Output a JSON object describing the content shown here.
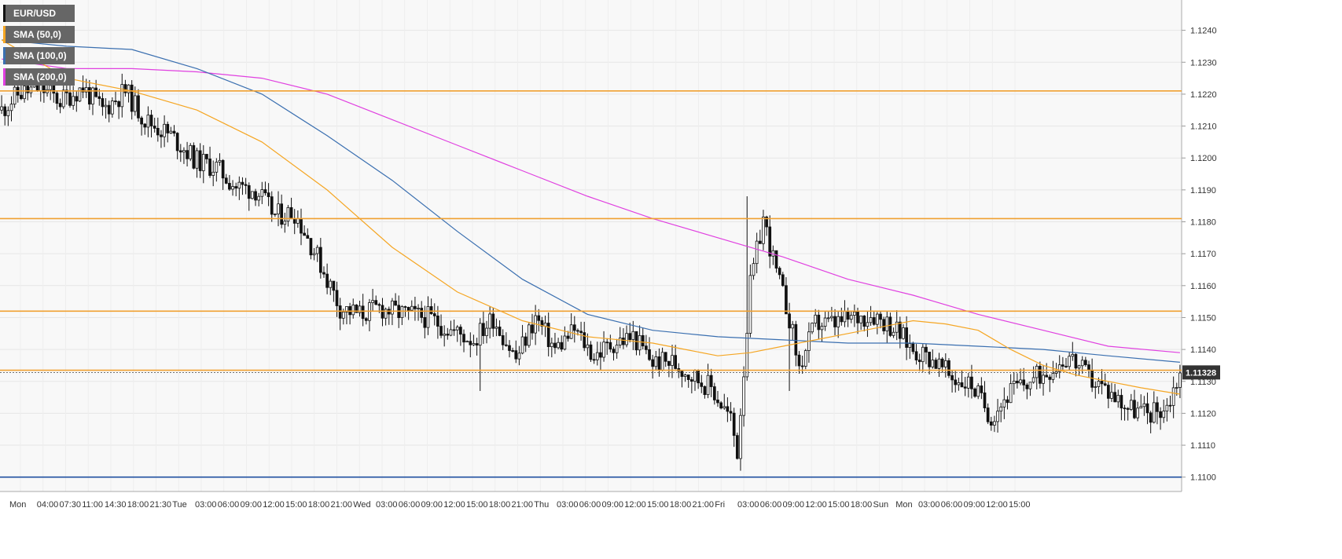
{
  "chart_data": {
    "type": "candlestick",
    "symbol": "EUR/USD",
    "indicators": [
      {
        "label": "SMA (50,0)",
        "color": "#f5a623"
      },
      {
        "label": "SMA (100,0)",
        "color": "#3a6fb0"
      },
      {
        "label": "SMA (200,0)",
        "color": "#e040e0"
      }
    ],
    "y_ticks": [
      "1.1240",
      "1.1230",
      "1.1220",
      "1.1210",
      "1.1200",
      "1.1190",
      "1.1180",
      "1.1170",
      "1.1160",
      "1.1150",
      "1.1140",
      "1.1130",
      "1.1120",
      "1.1110",
      "1.1100"
    ],
    "ylim": [
      1.10955,
      1.12495
    ],
    "x_ticks": [
      "Mon",
      "04:00",
      "07:30",
      "11:00",
      "14:30",
      "18:00",
      "21:30",
      "Tue",
      "03:00",
      "06:00",
      "09:00",
      "12:00",
      "15:00",
      "18:00",
      "21:00",
      "Wed",
      "03:00",
      "06:00",
      "09:00",
      "12:00",
      "15:00",
      "18:00",
      "21:00",
      "Thu",
      "03:00",
      "06:00",
      "09:00",
      "12:00",
      "15:00",
      "18:00",
      "21:00",
      "Fri",
      "03:00",
      "06:00",
      "09:00",
      "12:00",
      "15:00",
      "18:00",
      "Sun",
      "Mon",
      "03:00",
      "06:00",
      "09:00",
      "12:00",
      "15:00"
    ],
    "current_price": "1.11328",
    "current_price_value": 1.11328,
    "horizontal_levels": [
      {
        "value": 1.1221,
        "color": "#f0a030"
      },
      {
        "value": 1.1181,
        "color": "#f0a030"
      },
      {
        "value": 1.1152,
        "color": "#f0a030"
      },
      {
        "value": 1.11335,
        "color": "#f0a030"
      },
      {
        "value": 1.11,
        "color": "#1f4fa0"
      }
    ],
    "close_path": [
      [
        0,
        1.1215
      ],
      [
        5,
        1.122
      ],
      [
        12,
        1.1222
      ],
      [
        18,
        1.1218
      ],
      [
        25,
        1.1222
      ],
      [
        31,
        1.1215
      ],
      [
        38,
        1.1221
      ],
      [
        44,
        1.1212
      ],
      [
        52,
        1.1207
      ],
      [
        60,
        1.1199
      ],
      [
        66,
        1.1197
      ],
      [
        72,
        1.1191
      ],
      [
        78,
        1.119
      ],
      [
        84,
        1.1182
      ],
      [
        90,
        1.1183
      ],
      [
        97,
        1.1169
      ],
      [
        104,
        1.1153
      ],
      [
        110,
        1.1151
      ],
      [
        116,
        1.1153
      ],
      [
        124,
        1.1151
      ],
      [
        131,
        1.115
      ],
      [
        138,
        1.1146
      ],
      [
        145,
        1.1143
      ],
      [
        151,
        1.115
      ],
      [
        158,
        1.1137
      ],
      [
        164,
        1.115
      ],
      [
        170,
        1.114
      ],
      [
        176,
        1.1146
      ],
      [
        182,
        1.1138
      ],
      [
        188,
        1.1142
      ],
      [
        194,
        1.1144
      ],
      [
        200,
        1.1136
      ],
      [
        206,
        1.1136
      ],
      [
        212,
        1.1132
      ],
      [
        218,
        1.1128
      ],
      [
        224,
        1.1118
      ],
      [
        226,
        1.1108
      ],
      [
        230,
        1.116
      ],
      [
        234,
        1.1181
      ],
      [
        238,
        1.1164
      ],
      [
        242,
        1.115
      ],
      [
        245,
        1.1134
      ],
      [
        250,
        1.1148
      ],
      [
        256,
        1.1148
      ],
      [
        262,
        1.115
      ],
      [
        268,
        1.1151
      ],
      [
        274,
        1.1147
      ],
      [
        280,
        1.114
      ],
      [
        286,
        1.1137
      ],
      [
        292,
        1.1131
      ],
      [
        298,
        1.1129
      ],
      [
        304,
        1.1119
      ],
      [
        310,
        1.1127
      ],
      [
        316,
        1.113
      ],
      [
        322,
        1.1134
      ],
      [
        328,
        1.1138
      ],
      [
        334,
        1.1131
      ],
      [
        340,
        1.1127
      ],
      [
        346,
        1.1122
      ],
      [
        352,
        1.112
      ],
      [
        358,
        1.1122
      ],
      [
        362,
        1.1133
      ]
    ],
    "sma50": [
      [
        0,
        1.1237
      ],
      [
        20,
        1.1225
      ],
      [
        40,
        1.1221
      ],
      [
        60,
        1.1215
      ],
      [
        80,
        1.1205
      ],
      [
        100,
        1.119
      ],
      [
        120,
        1.1172
      ],
      [
        140,
        1.1158
      ],
      [
        160,
        1.1149
      ],
      [
        180,
        1.1144
      ],
      [
        200,
        1.1142
      ],
      [
        210,
        1.114
      ],
      [
        220,
        1.1138
      ],
      [
        230,
        1.1139
      ],
      [
        240,
        1.1141
      ],
      [
        250,
        1.1143
      ],
      [
        260,
        1.1145
      ],
      [
        270,
        1.1147
      ],
      [
        280,
        1.1149
      ],
      [
        290,
        1.1148
      ],
      [
        300,
        1.1146
      ],
      [
        310,
        1.114
      ],
      [
        320,
        1.1135
      ],
      [
        330,
        1.1132
      ],
      [
        340,
        1.113
      ],
      [
        350,
        1.1128
      ],
      [
        362,
        1.1126
      ]
    ],
    "sma100": [
      [
        0,
        1.1237
      ],
      [
        20,
        1.1235
      ],
      [
        40,
        1.1234
      ],
      [
        60,
        1.1228
      ],
      [
        80,
        1.122
      ],
      [
        100,
        1.1207
      ],
      [
        120,
        1.1193
      ],
      [
        140,
        1.1177
      ],
      [
        160,
        1.1162
      ],
      [
        180,
        1.1151
      ],
      [
        200,
        1.1146
      ],
      [
        210,
        1.1145
      ],
      [
        220,
        1.1144
      ],
      [
        240,
        1.1143
      ],
      [
        260,
        1.1142
      ],
      [
        280,
        1.1142
      ],
      [
        300,
        1.1141
      ],
      [
        320,
        1.114
      ],
      [
        340,
        1.1138
      ],
      [
        362,
        1.1136
      ]
    ],
    "sma200": [
      [
        0,
        1.1231
      ],
      [
        20,
        1.1228
      ],
      [
        40,
        1.1228
      ],
      [
        60,
        1.1227
      ],
      [
        80,
        1.1225
      ],
      [
        100,
        1.122
      ],
      [
        120,
        1.1212
      ],
      [
        140,
        1.1204
      ],
      [
        160,
        1.1196
      ],
      [
        180,
        1.1188
      ],
      [
        200,
        1.1181
      ],
      [
        220,
        1.1175
      ],
      [
        240,
        1.1169
      ],
      [
        260,
        1.1162
      ],
      [
        280,
        1.1157
      ],
      [
        300,
        1.1151
      ],
      [
        320,
        1.1146
      ],
      [
        340,
        1.1141
      ],
      [
        362,
        1.1139
      ]
    ],
    "n_bars": 363,
    "seed": 11
  }
}
